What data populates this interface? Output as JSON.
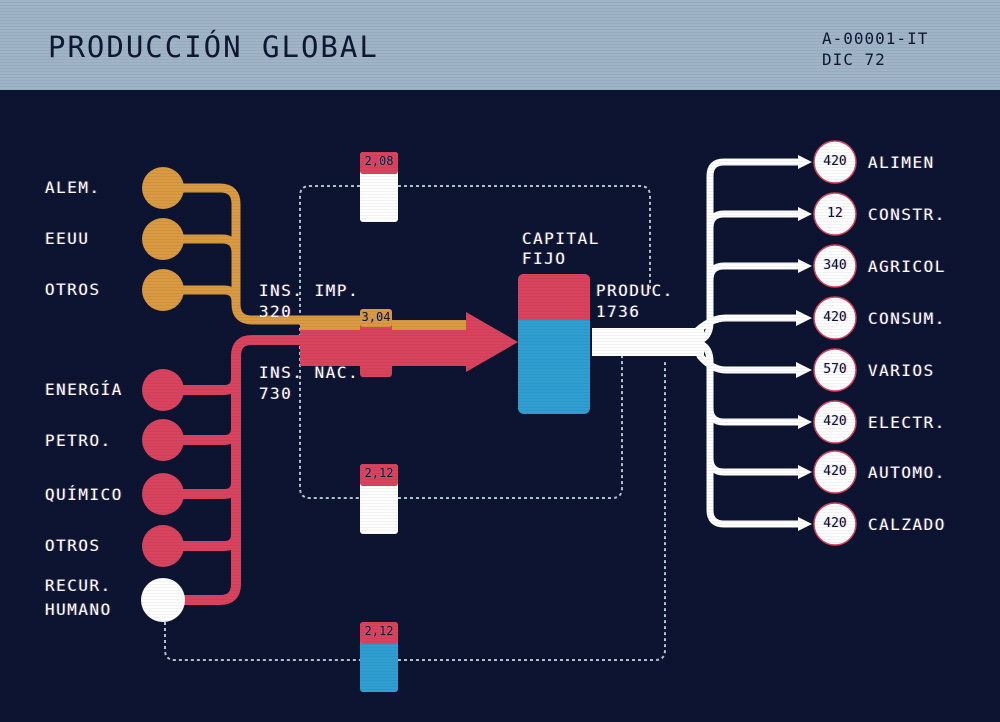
{
  "header": {
    "title": "PRODUCCIÓN GLOBAL",
    "code_line1": "A-00001-IT",
    "code_line2": "DIC 72"
  },
  "colors": {
    "background": "#0d1431",
    "header_bg": "#9fb4c7",
    "imported": "#d99a41",
    "national": "#d9435e",
    "capital_top": "#d9435e",
    "capital_bottom": "#2e9fd0",
    "output": "#ffffff"
  },
  "inputs": {
    "imported": [
      {
        "label": "ALEM."
      },
      {
        "label": "EEUU"
      },
      {
        "label": "OTROS"
      }
    ],
    "national": [
      {
        "label": "ENERGÍA"
      },
      {
        "label": "PETRO."
      },
      {
        "label": "QUÍMICO"
      },
      {
        "label": "OTROS"
      }
    ],
    "human": {
      "label_line1": "RECUR.",
      "label_line2": "HUMANO"
    }
  },
  "flows": {
    "ins_imp_label": "INS. IMP.",
    "ins_imp_value": "320",
    "ins_nac_label": "INS. NAC.",
    "ins_nac_value": "730",
    "capital_line1": "CAPITAL",
    "capital_line2": "FIJO",
    "produc_label": "PRODUC.",
    "produc_value": "1736"
  },
  "ratios": {
    "top": "2,08",
    "main": "3,04",
    "middle": "2,12",
    "bottom": "2,12"
  },
  "outputs": [
    {
      "value": "420",
      "label": "ALIMEN"
    },
    {
      "value": "12",
      "label": "CONSTR."
    },
    {
      "value": "340",
      "label": "AGRICOL"
    },
    {
      "value": "420",
      "label": "CONSUM."
    },
    {
      "value": "570",
      "label": "VARIOS"
    },
    {
      "value": "420",
      "label": "ELECTR."
    },
    {
      "value": "420",
      "label": "AUTOMO."
    },
    {
      "value": "420",
      "label": "CALZADO"
    }
  ]
}
